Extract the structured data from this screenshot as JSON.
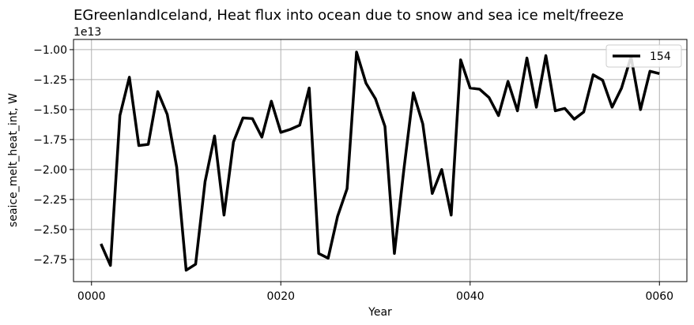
{
  "chart_data": {
    "type": "line",
    "title": "EGreenlandIceland, Heat flux into ocean due to snow and sea ice melt/freeze",
    "xlabel": "Year",
    "ylabel": "seaice_melt_heat_int, W",
    "y_offset_label": "1e13",
    "xlim": [
      -1.9,
      62.9
    ],
    "ylim": [
      -2.935,
      -0.915
    ],
    "x_ticks": [
      0,
      20,
      40,
      60
    ],
    "x_tick_labels": [
      "0000",
      "0020",
      "0040",
      "0060"
    ],
    "y_ticks": [
      -2.75,
      -2.5,
      -2.25,
      -2.0,
      -1.75,
      -1.5,
      -1.25,
      -1.0
    ],
    "y_tick_labels": [
      "−2.75",
      "−2.50",
      "−2.25",
      "−2.00",
      "−1.75",
      "−1.50",
      "−1.25",
      "−1.00"
    ],
    "grid": true,
    "legend_position": "top-right",
    "series": [
      {
        "name": "154",
        "color": "#000000",
        "x": [
          1,
          2,
          3,
          4,
          5,
          6,
          7,
          8,
          9,
          10,
          11,
          12,
          13,
          14,
          15,
          16,
          17,
          18,
          19,
          20,
          21,
          22,
          23,
          24,
          25,
          26,
          27,
          28,
          29,
          30,
          31,
          32,
          33,
          34,
          35,
          36,
          37,
          38,
          39,
          40,
          41,
          42,
          43,
          44,
          45,
          46,
          47,
          48,
          49,
          50,
          51,
          52,
          53,
          54,
          55,
          56,
          57,
          58,
          59,
          60
        ],
        "values": [
          -2.62,
          -2.8,
          -1.55,
          -1.23,
          -1.8,
          -1.79,
          -1.35,
          -1.54,
          -1.98,
          -2.84,
          -2.79,
          -2.1,
          -1.72,
          -2.38,
          -1.77,
          -1.57,
          -1.575,
          -1.73,
          -1.43,
          -1.69,
          -1.665,
          -1.63,
          -1.32,
          -2.7,
          -2.74,
          -2.39,
          -2.16,
          -1.02,
          -1.28,
          -1.41,
          -1.64,
          -2.7,
          -2.0,
          -1.36,
          -1.62,
          -2.2,
          -2.0,
          -2.38,
          -1.085,
          -1.32,
          -1.33,
          -1.4,
          -1.55,
          -1.265,
          -1.51,
          -1.07,
          -1.48,
          -1.05,
          -1.51,
          -1.49,
          -1.58,
          -1.52,
          -1.21,
          -1.255,
          -1.48,
          -1.32,
          -1.06,
          -1.5,
          -1.18,
          -1.2
        ]
      }
    ]
  }
}
